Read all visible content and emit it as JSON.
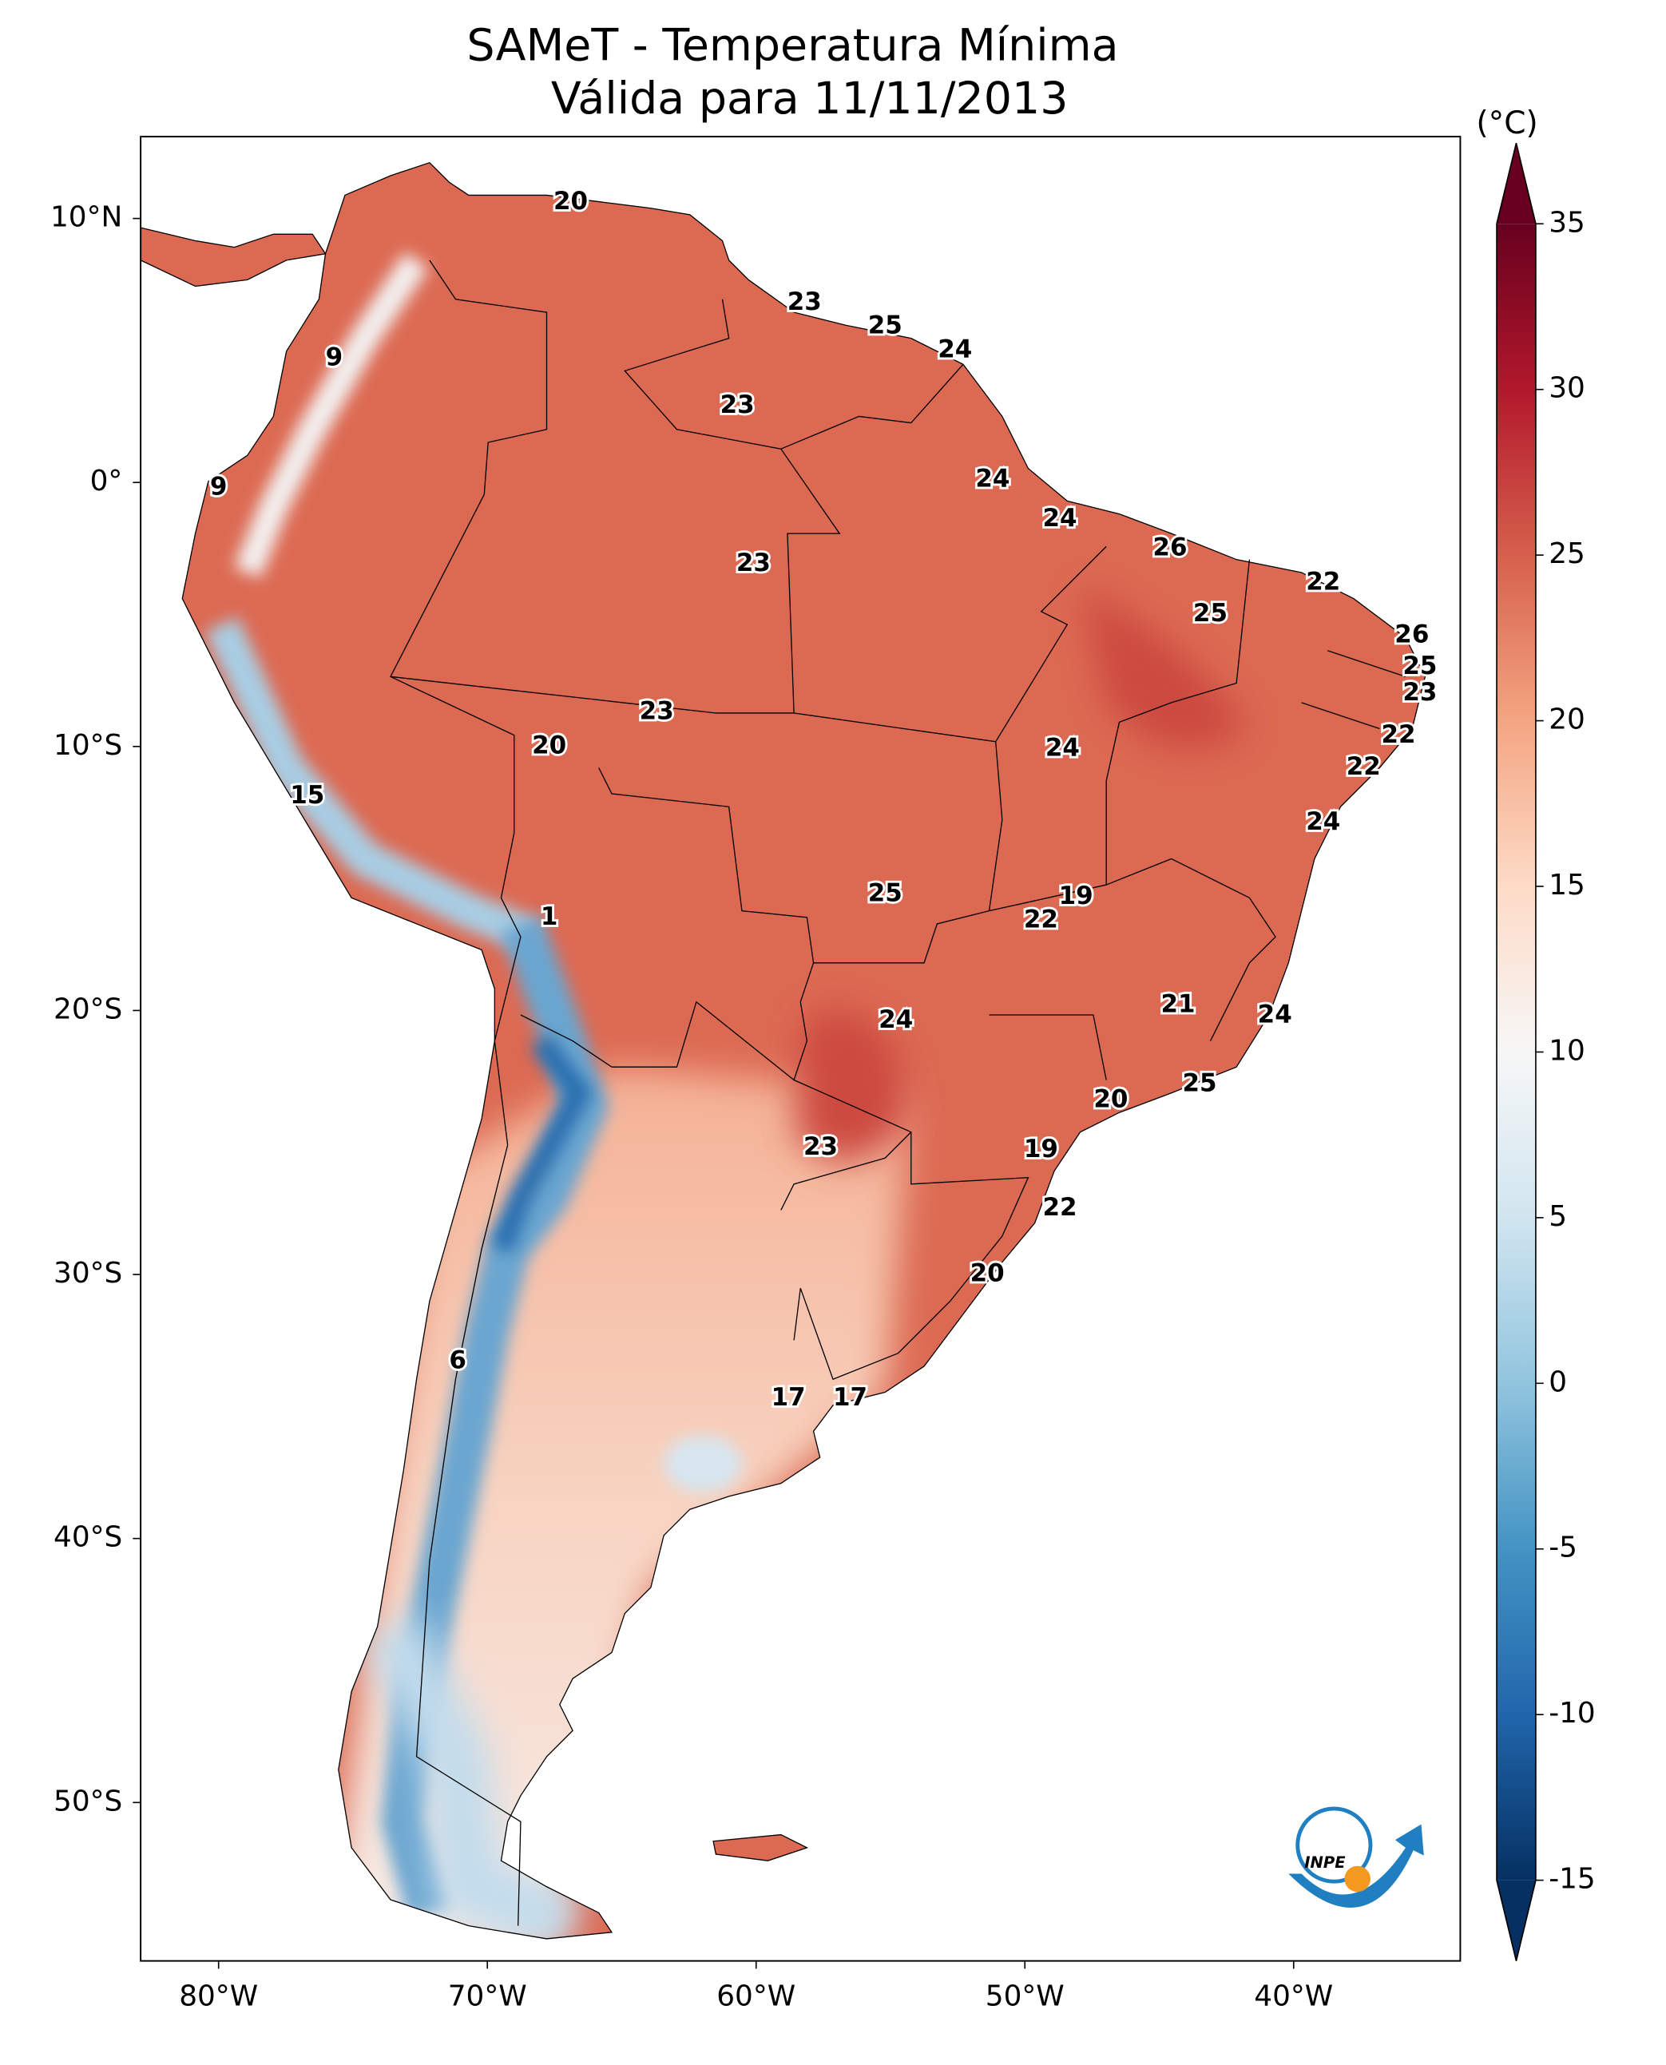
{
  "chart_data": {
    "type": "map",
    "title": "SAMeT - Temperatura Mínima",
    "subtitle": "Válida para 11/11/2013",
    "xlim": [
      -82.9,
      -33.8
    ],
    "ylim": [
      -56.0,
      13.1
    ],
    "xticks": [
      {
        "value": -80,
        "label": "80°W"
      },
      {
        "value": -70,
        "label": "70°W"
      },
      {
        "value": -60,
        "label": "60°W"
      },
      {
        "value": -50,
        "label": "50°W"
      },
      {
        "value": -40,
        "label": "40°W"
      }
    ],
    "yticks": [
      {
        "value": 10,
        "label": "10°N"
      },
      {
        "value": 0,
        "label": "0°"
      },
      {
        "value": -10,
        "label": "10°S"
      },
      {
        "value": -20,
        "label": "20°S"
      },
      {
        "value": -30,
        "label": "30°S"
      },
      {
        "value": -40,
        "label": "40°S"
      },
      {
        "value": -50,
        "label": "50°S"
      }
    ],
    "colorbar": {
      "label": "(°C)",
      "lim": [
        -15,
        35
      ],
      "ticks": [
        -15,
        -10,
        -5,
        0,
        5,
        10,
        15,
        20,
        25,
        30,
        35
      ],
      "colors": [
        "#053061",
        "#2166ac",
        "#4393c3",
        "#92c5de",
        "#d1e5f0",
        "#f7f7f7",
        "#fddbc7",
        "#f4a582",
        "#d6604d",
        "#b2182b",
        "#67001f"
      ]
    },
    "stations": [
      {
        "lon": -66.9,
        "lat": 10.6,
        "value": 20
      },
      {
        "lon": -58.2,
        "lat": 6.8,
        "value": 23
      },
      {
        "lon": -55.2,
        "lat": 5.9,
        "value": 25
      },
      {
        "lon": -52.6,
        "lat": 5.0,
        "value": 24
      },
      {
        "lon": -75.7,
        "lat": 4.7,
        "value": 9
      },
      {
        "lon": -60.7,
        "lat": 2.9,
        "value": 23
      },
      {
        "lon": -80.0,
        "lat": -0.2,
        "value": 9
      },
      {
        "lon": -51.2,
        "lat": 0.1,
        "value": 24
      },
      {
        "lon": -48.7,
        "lat": -1.4,
        "value": 24
      },
      {
        "lon": -44.6,
        "lat": -2.5,
        "value": 26
      },
      {
        "lon": -38.9,
        "lat": -3.8,
        "value": 22
      },
      {
        "lon": -60.1,
        "lat": -3.1,
        "value": 23
      },
      {
        "lon": -43.1,
        "lat": -5.0,
        "value": 25
      },
      {
        "lon": -35.6,
        "lat": -5.8,
        "value": 26
      },
      {
        "lon": -35.3,
        "lat": -7.0,
        "value": 25
      },
      {
        "lon": -35.3,
        "lat": -8.0,
        "value": 23
      },
      {
        "lon": -63.7,
        "lat": -8.7,
        "value": 23
      },
      {
        "lon": -36.1,
        "lat": -9.6,
        "value": 22
      },
      {
        "lon": -67.7,
        "lat": -10.0,
        "value": 20
      },
      {
        "lon": -48.6,
        "lat": -10.1,
        "value": 24
      },
      {
        "lon": -37.4,
        "lat": -10.8,
        "value": 22
      },
      {
        "lon": -76.7,
        "lat": -11.9,
        "value": 15
      },
      {
        "lon": -38.9,
        "lat": -12.9,
        "value": 24
      },
      {
        "lon": -55.2,
        "lat": -15.6,
        "value": 25
      },
      {
        "lon": -48.1,
        "lat": -15.7,
        "value": 19
      },
      {
        "lon": -49.4,
        "lat": -16.6,
        "value": 22
      },
      {
        "lon": -67.7,
        "lat": -16.5,
        "value": 1
      },
      {
        "lon": -44.3,
        "lat": -19.8,
        "value": 21
      },
      {
        "lon": -40.7,
        "lat": -20.2,
        "value": 24
      },
      {
        "lon": -54.8,
        "lat": -20.4,
        "value": 24
      },
      {
        "lon": -43.5,
        "lat": -22.8,
        "value": 25
      },
      {
        "lon": -46.8,
        "lat": -23.4,
        "value": 20
      },
      {
        "lon": -57.6,
        "lat": -25.2,
        "value": 23
      },
      {
        "lon": -49.4,
        "lat": -25.3,
        "value": 19
      },
      {
        "lon": -48.7,
        "lat": -27.5,
        "value": 22
      },
      {
        "lon": -51.4,
        "lat": -30.0,
        "value": 20
      },
      {
        "lon": -71.1,
        "lat": -33.3,
        "value": 6
      },
      {
        "lon": -58.8,
        "lat": -34.7,
        "value": 17
      },
      {
        "lon": -56.5,
        "lat": -34.7,
        "value": 17
      }
    ],
    "logo_text": "INPE"
  }
}
